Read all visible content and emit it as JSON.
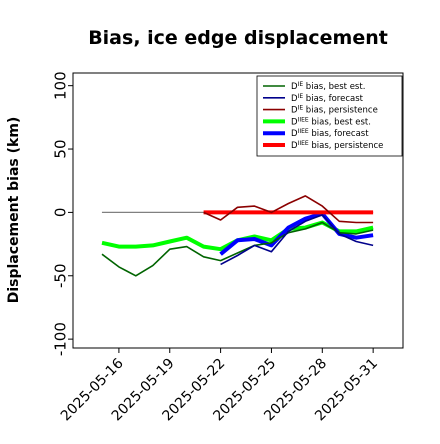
{
  "chart_data": {
    "type": "line",
    "title": "Bias, ice edge displacement",
    "ylabel": "Displacement bias (km)",
    "xlabel": "",
    "ylim": [
      -107,
      110
    ],
    "yticks": [
      -100,
      -50,
      0,
      50,
      100
    ],
    "xticks": [
      "2025-05-16",
      "2025-05-19",
      "2025-05-22",
      "2025-05-25",
      "2025-05-28",
      "2025-05-31"
    ],
    "highlight_tick": "2025-05-22",
    "highlight_color": "#228b22",
    "reference_line": {
      "y": 0,
      "from": "2025-05-15",
      "to": "2025-05-31",
      "color": "#808080"
    },
    "legend_position": "top-right",
    "series": [
      {
        "name": "D^IE bias, best est.",
        "label_base": "D",
        "label_sup": "IE",
        "label_rest": " bias, best est.",
        "color": "#006400",
        "width": 1.6,
        "x": [
          "2025-05-15",
          "2025-05-16",
          "2025-05-17",
          "2025-05-18",
          "2025-05-19",
          "2025-05-20",
          "2025-05-21",
          "2025-05-22",
          "2025-05-23",
          "2025-05-24",
          "2025-05-25",
          "2025-05-26",
          "2025-05-27",
          "2025-05-28",
          "2025-05-29",
          "2025-05-30",
          "2025-05-31"
        ],
        "y": [
          -33,
          -43,
          -50,
          -42,
          -29,
          -27,
          -35,
          -38,
          -32,
          -26,
          -24,
          -16,
          -13,
          -8,
          -16,
          -17,
          -14
        ]
      },
      {
        "name": "D^IE bias, forecast",
        "label_base": "D",
        "label_sup": "IE",
        "label_rest": " bias, forecast",
        "color": "#00008b",
        "width": 1.6,
        "x": [
          "2025-05-22",
          "2025-05-23",
          "2025-05-24",
          "2025-05-25",
          "2025-05-26",
          "2025-05-27",
          "2025-05-28",
          "2025-05-29",
          "2025-05-30",
          "2025-05-31"
        ],
        "y": [
          -41,
          -34,
          -26,
          -31,
          -15,
          -7,
          -2,
          -17,
          -23,
          -26
        ]
      },
      {
        "name": "D^IE bias, persistence",
        "label_base": "D",
        "label_sup": "IE",
        "label_rest": " bias, persistence",
        "color": "#8b0000",
        "width": 1.6,
        "x": [
          "2025-05-21",
          "2025-05-22",
          "2025-05-23",
          "2025-05-24",
          "2025-05-25",
          "2025-05-26",
          "2025-05-27",
          "2025-05-28",
          "2025-05-29",
          "2025-05-30",
          "2025-05-31"
        ],
        "y": [
          0,
          -6,
          4,
          5,
          0,
          7,
          13,
          5,
          -7,
          -8,
          -8
        ]
      },
      {
        "name": "D^IIEE bias, best est.",
        "label_base": "D",
        "label_sup": "IIEE",
        "label_rest": " bias, best est.",
        "color": "#00ff00",
        "width": 4,
        "x": [
          "2025-05-15",
          "2025-05-16",
          "2025-05-17",
          "2025-05-18",
          "2025-05-19",
          "2025-05-20",
          "2025-05-21",
          "2025-05-22",
          "2025-05-23",
          "2025-05-24",
          "2025-05-25",
          "2025-05-26",
          "2025-05-27",
          "2025-05-28",
          "2025-05-29",
          "2025-05-30",
          "2025-05-31"
        ],
        "y": [
          -24,
          -27,
          -27,
          -26,
          -23,
          -20,
          -27,
          -29,
          -22,
          -19,
          -22,
          -13,
          -12,
          -8,
          -15,
          -15,
          -12
        ]
      },
      {
        "name": "D^IIEE bias, forecast",
        "label_base": "D",
        "label_sup": "IIEE",
        "label_rest": " bias, forecast",
        "color": "#0000ff",
        "width": 4,
        "x": [
          "2025-05-22",
          "2025-05-23",
          "2025-05-24",
          "2025-05-25",
          "2025-05-26",
          "2025-05-27",
          "2025-05-28",
          "2025-05-29",
          "2025-05-30",
          "2025-05-31"
        ],
        "y": [
          -33,
          -22,
          -21,
          -26,
          -12,
          -5,
          -1,
          -17,
          -20,
          -18
        ]
      },
      {
        "name": "D^IIEE bias, persistence",
        "label_base": "D",
        "label_sup": "IIEE",
        "label_rest": " bias, persistence",
        "color": "#ff0000",
        "width": 4,
        "x": [
          "2025-05-21",
          "2025-05-22",
          "2025-05-23",
          "2025-05-24",
          "2025-05-25",
          "2025-05-26",
          "2025-05-27",
          "2025-05-28",
          "2025-05-29",
          "2025-05-30",
          "2025-05-31"
        ],
        "y": [
          0,
          0,
          0,
          0,
          0,
          0,
          0,
          0,
          0,
          0,
          0
        ]
      }
    ]
  }
}
